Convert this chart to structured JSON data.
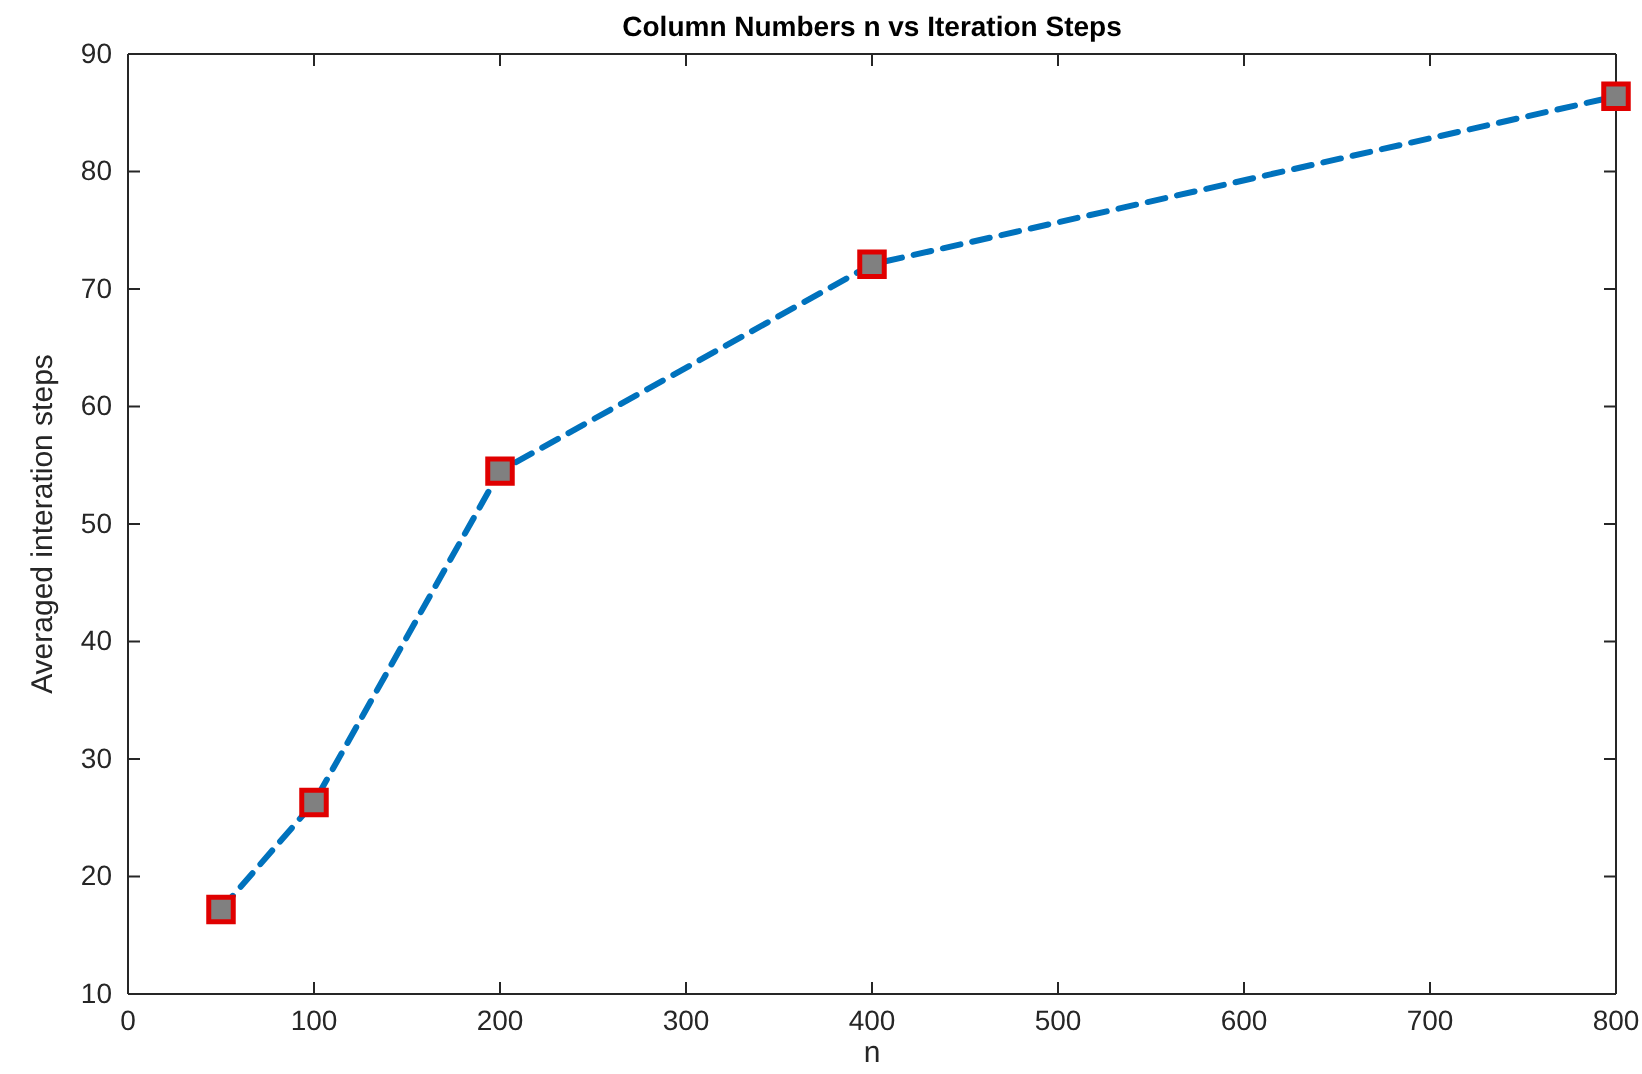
{
  "chart_data": {
    "type": "line",
    "title": "Column Numbers n vs Iteration Steps",
    "xlabel": "n",
    "ylabel": "Averaged interation steps",
    "x": [
      50,
      100,
      200,
      400,
      800
    ],
    "series": [
      {
        "color": "#0072bd",
        "values": [
          17.2,
          26.3,
          54.5,
          72.1,
          86.4
        ]
      }
    ],
    "xlim": [
      0,
      800
    ],
    "xticks": [
      0,
      100,
      200,
      300,
      400,
      500,
      600,
      700,
      800
    ],
    "ylim": [
      10,
      90
    ],
    "yticks": [
      10,
      20,
      30,
      40,
      50,
      60,
      70,
      80,
      90
    ],
    "grid": false,
    "marker": "square",
    "line_style": "dashed"
  }
}
